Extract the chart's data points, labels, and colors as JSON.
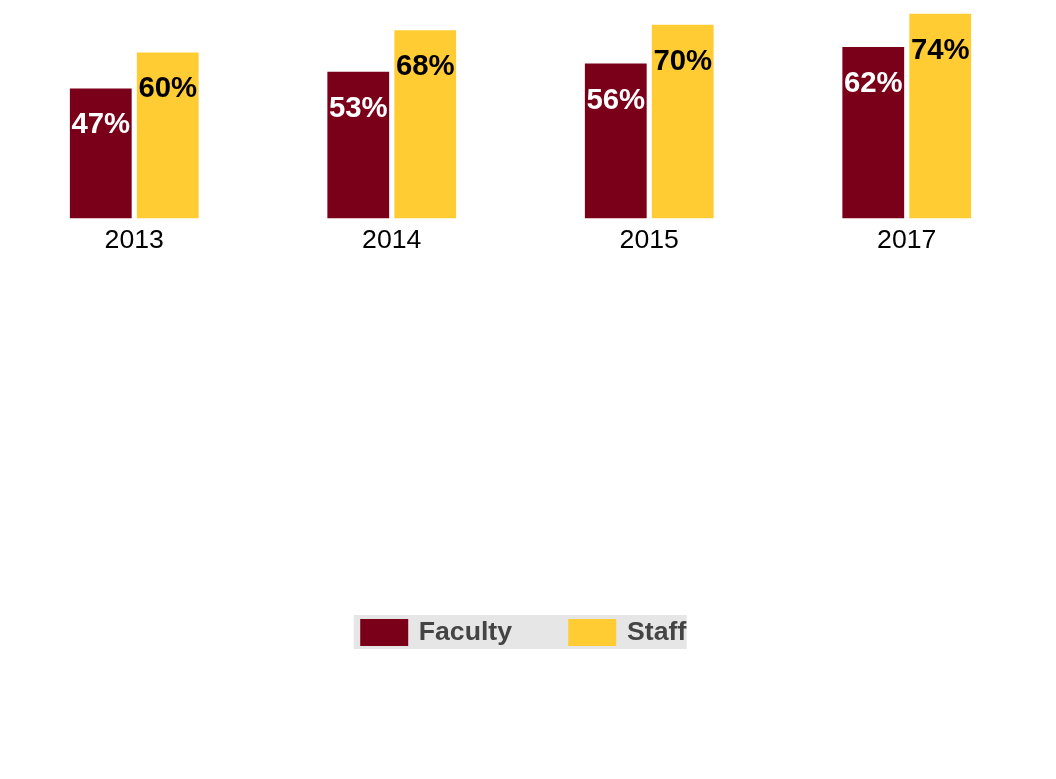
{
  "chart_data": {
    "type": "bar",
    "categories": [
      "2013",
      "2014",
      "2015",
      "2017"
    ],
    "series": [
      {
        "name": "Faculty",
        "color": "#7a0019",
        "values": [
          47,
          53,
          56,
          62
        ],
        "value_labels": [
          "47%",
          "53%",
          "56%",
          "62%"
        ]
      },
      {
        "name": "Staff",
        "color": "#ffcc33",
        "values": [
          60,
          68,
          70,
          74
        ],
        "value_labels": [
          "60%",
          "68%",
          "70%",
          "74%"
        ]
      }
    ],
    "legend": "bottom",
    "grid": false
  }
}
